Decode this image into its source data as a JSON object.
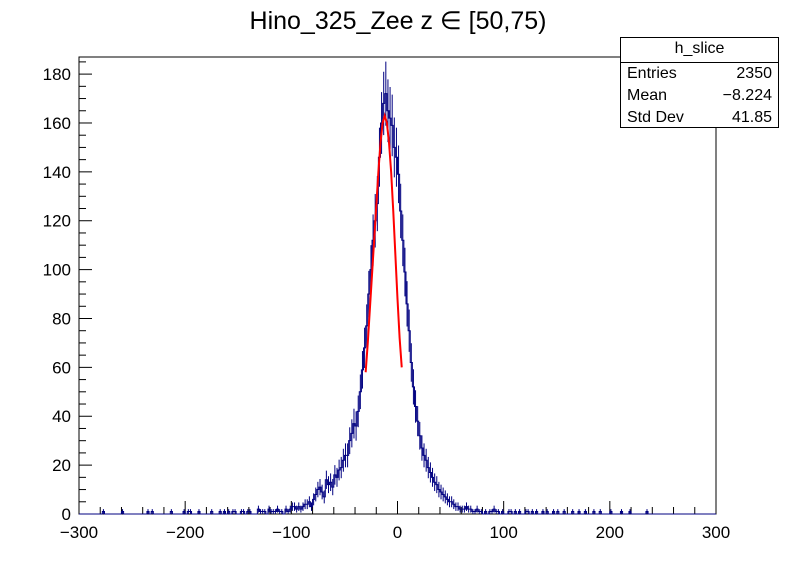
{
  "title": "Hino_325_Zee z  ∈ [50,75)",
  "stats": {
    "name": "h_slice",
    "rows": [
      {
        "label": "Entries",
        "value": "2350"
      },
      {
        "label": "Mean",
        "value": "−8.224"
      },
      {
        "label": "Std Dev",
        "value": "41.85"
      }
    ]
  },
  "chart_data": {
    "type": "histogram",
    "title": "Hino_325_Zee z  ∈ [50,75)",
    "xlim": [
      -300,
      300
    ],
    "ylim": [
      0,
      187
    ],
    "xticks": [
      "−300",
      "−200",
      "−100",
      "0",
      "100",
      "200",
      "300"
    ],
    "yticks": [
      "0",
      "20",
      "40",
      "60",
      "80",
      "100",
      "120",
      "140",
      "160",
      "180"
    ],
    "bin_width": 2,
    "series": [
      {
        "color": "#000080",
        "bins_x_center": [
          -299,
          -297,
          -295,
          -293,
          -291,
          -289,
          -287,
          -285,
          -283,
          -281,
          -279,
          -277,
          -275,
          -273,
          -271,
          -269,
          -267,
          -265,
          -263,
          -261,
          -259,
          -257,
          -255,
          -253,
          -251,
          -249,
          -247,
          -245,
          -243,
          -241,
          -239,
          -237,
          -235,
          -233,
          -231,
          -229,
          -227,
          -225,
          -223,
          -221,
          -219,
          -217,
          -215,
          -213,
          -211,
          -209,
          -207,
          -205,
          -203,
          -201,
          -199,
          -197,
          -195,
          -193,
          -191,
          -189,
          -187,
          -185,
          -183,
          -181,
          -179,
          -177,
          -175,
          -173,
          -171,
          -169,
          -167,
          -165,
          -163,
          -161,
          -159,
          -157,
          -155,
          -153,
          -151,
          -149,
          -147,
          -145,
          -143,
          -141,
          -139,
          -137,
          -135,
          -133,
          -131,
          -129,
          -127,
          -125,
          -123,
          -121,
          -119,
          -117,
          -115,
          -113,
          -111,
          -109,
          -107,
          -105,
          -103,
          -101,
          -99,
          -97,
          -95,
          -93,
          -91,
          -89,
          -87,
          -85,
          -83,
          -81,
          -79,
          -77,
          -75,
          -73,
          -71,
          -69,
          -67,
          -65,
          -63,
          -61,
          -59,
          -57,
          -55,
          -53,
          -51,
          -49,
          -47,
          -45,
          -43,
          -41,
          -39,
          -37,
          -35,
          -33,
          -31,
          -29,
          -27,
          -25,
          -23,
          -21,
          -19,
          -17,
          -15,
          -13,
          -11,
          -9,
          -7,
          -5,
          -3,
          -1,
          1,
          3,
          5,
          7,
          9,
          11,
          13,
          15,
          17,
          19,
          21,
          23,
          25,
          27,
          29,
          31,
          33,
          35,
          37,
          39,
          41,
          43,
          45,
          47,
          49,
          51,
          53,
          55,
          57,
          59,
          61,
          63,
          65,
          67,
          69,
          71,
          73,
          75,
          77,
          79,
          81,
          83,
          85,
          87,
          89,
          91,
          93,
          95,
          97,
          99,
          101,
          103,
          105,
          107,
          109,
          111,
          113,
          115,
          117,
          119,
          121,
          123,
          125,
          127,
          129,
          131,
          133,
          135,
          137,
          139,
          141,
          143,
          145,
          147,
          149,
          151,
          153,
          155,
          157,
          159,
          161,
          163,
          165,
          167,
          169,
          171,
          173,
          175,
          177,
          179,
          181,
          183,
          185,
          187,
          189,
          191,
          193,
          195,
          197,
          199,
          201,
          203,
          205,
          207,
          209,
          211,
          213,
          215,
          217,
          219,
          221,
          223,
          225,
          227,
          229,
          231,
          233,
          235,
          237,
          239,
          241,
          243,
          245,
          247,
          249,
          251,
          253,
          255,
          257,
          259,
          261,
          263,
          265,
          267,
          269,
          271,
          273,
          275,
          277,
          279,
          281,
          283,
          285,
          287,
          289,
          291,
          293,
          295,
          297,
          299
        ],
        "counts": [
          0,
          0,
          0,
          0,
          0,
          0,
          0,
          0,
          0,
          0,
          0,
          1,
          0,
          0,
          0,
          0,
          0,
          0,
          0,
          0,
          1,
          0,
          0,
          0,
          0,
          0,
          0,
          0,
          0,
          0,
          0,
          0,
          1,
          0,
          1,
          0,
          0,
          0,
          0,
          0,
          0,
          0,
          0,
          1,
          0,
          0,
          0,
          0,
          0,
          1,
          0,
          1,
          1,
          0,
          0,
          0,
          1,
          0,
          0,
          0,
          0,
          0,
          1,
          0,
          0,
          0,
          1,
          0,
          1,
          0,
          1,
          0,
          1,
          1,
          0,
          0,
          1,
          1,
          0,
          1,
          1,
          0,
          0,
          0,
          2,
          1,
          1,
          1,
          0,
          2,
          1,
          1,
          1,
          2,
          1,
          1,
          0,
          2,
          1,
          2,
          3,
          3,
          2,
          3,
          2,
          3,
          4,
          4,
          5,
          3,
          6,
          8,
          10,
          11,
          9,
          7,
          14,
          12,
          13,
          11,
          16,
          15,
          18,
          19,
          22,
          24,
          24,
          30,
          33,
          37,
          36,
          42,
          50,
          59,
          68,
          77,
          90,
          100,
          112,
          120,
          127,
          146,
          160,
          168,
          172,
          165,
          162,
          159,
          150,
          146,
          139,
          124,
          112,
          99,
          86,
          75,
          62,
          52,
          44,
          38,
          32,
          27,
          24,
          22,
          19,
          17,
          15,
          13,
          12,
          10,
          9,
          8,
          7,
          6,
          5,
          5,
          4,
          3,
          3,
          2,
          2,
          2,
          3,
          2,
          2,
          1,
          1,
          2,
          1,
          1,
          0,
          1,
          0,
          1,
          1,
          2,
          1,
          1,
          0,
          1,
          0,
          0,
          1,
          1,
          0,
          1,
          0,
          1,
          0,
          0,
          1,
          1,
          0,
          1,
          0,
          1,
          0,
          0,
          1,
          0,
          1,
          0,
          0,
          1,
          0,
          1,
          0,
          0,
          1,
          0,
          0,
          0,
          1,
          0,
          0,
          1,
          0,
          0,
          1,
          0,
          0,
          0,
          1,
          0,
          0,
          1,
          0,
          0,
          0,
          0,
          1,
          0,
          0,
          0,
          0,
          1,
          0,
          0,
          0,
          1,
          0,
          0,
          0,
          0,
          0,
          0,
          0,
          1,
          0,
          0,
          0,
          0,
          0,
          0,
          0,
          0,
          0,
          0,
          0,
          0,
          0,
          0,
          0,
          0,
          0,
          0,
          0,
          0,
          0,
          0,
          0,
          0,
          0,
          0,
          0,
          0,
          0,
          0,
          0,
          0,
          0,
          0,
          0,
          0,
          0,
          0
        ]
      },
      {
        "color": "#ff0000",
        "type": "fit",
        "x": [
          -30,
          -28,
          -26,
          -24,
          -22,
          -20,
          -18,
          -16,
          -14,
          -12,
          -10,
          -8,
          -6,
          -4,
          -2,
          0,
          2,
          4
        ],
        "y": [
          58,
          70,
          84,
          98,
          112,
          126,
          140,
          152,
          160,
          163,
          160,
          152,
          140,
          124,
          106,
          88,
          72,
          60
        ]
      }
    ]
  }
}
